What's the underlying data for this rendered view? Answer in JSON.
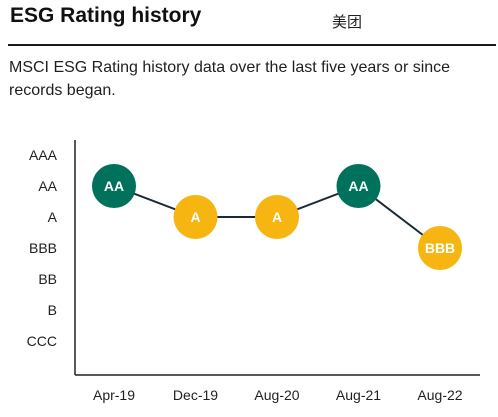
{
  "header": {
    "title": "ESG Rating history",
    "company": "美团"
  },
  "subtitle": "MSCI ESG Rating history data over the last five years or since records began.",
  "colors": {
    "leader": "#00715a",
    "average": "#f7b512",
    "line": "#1c2a33",
    "axis": "#222222"
  },
  "chart_data": {
    "type": "line",
    "title": "",
    "xlabel": "",
    "ylabel": "",
    "y_categories": [
      "CCC",
      "B",
      "BB",
      "BBB",
      "A",
      "AA",
      "AAA"
    ],
    "categories": [
      "Apr-19",
      "Dec-19",
      "Aug-20",
      "Aug-21",
      "Aug-22"
    ],
    "series": [
      {
        "values": [
          "AA",
          "A",
          "A",
          "AA",
          "BBB"
        ],
        "point_colors": [
          "leader",
          "average",
          "average",
          "leader",
          "average"
        ]
      }
    ],
    "grid": false,
    "legend": "none"
  }
}
